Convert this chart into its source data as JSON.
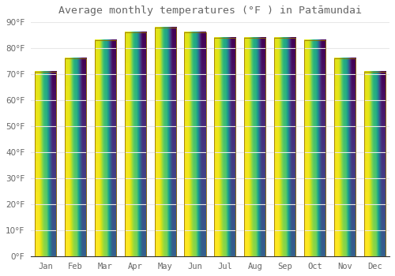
{
  "title": "Average monthly temperatures (°F ) in Patāmundai",
  "months": [
    "Jan",
    "Feb",
    "Mar",
    "Apr",
    "May",
    "Jun",
    "Jul",
    "Aug",
    "Sep",
    "Oct",
    "Nov",
    "Dec"
  ],
  "values": [
    71,
    76,
    83,
    86,
    88,
    86,
    84,
    84,
    84,
    83,
    76,
    71
  ],
  "bar_color_top": "#F5A623",
  "bar_color_bottom": "#FFD966",
  "bar_edge_color": "#9B7500",
  "background_color": "#FFFFFF",
  "grid_color": "#E8E8E8",
  "text_color": "#666666",
  "axis_line_color": "#333333",
  "ylim": [
    0,
    90
  ],
  "yticks": [
    0,
    10,
    20,
    30,
    40,
    50,
    60,
    70,
    80,
    90
  ],
  "title_fontsize": 9.5,
  "tick_fontsize": 7.5,
  "bar_width": 0.72
}
